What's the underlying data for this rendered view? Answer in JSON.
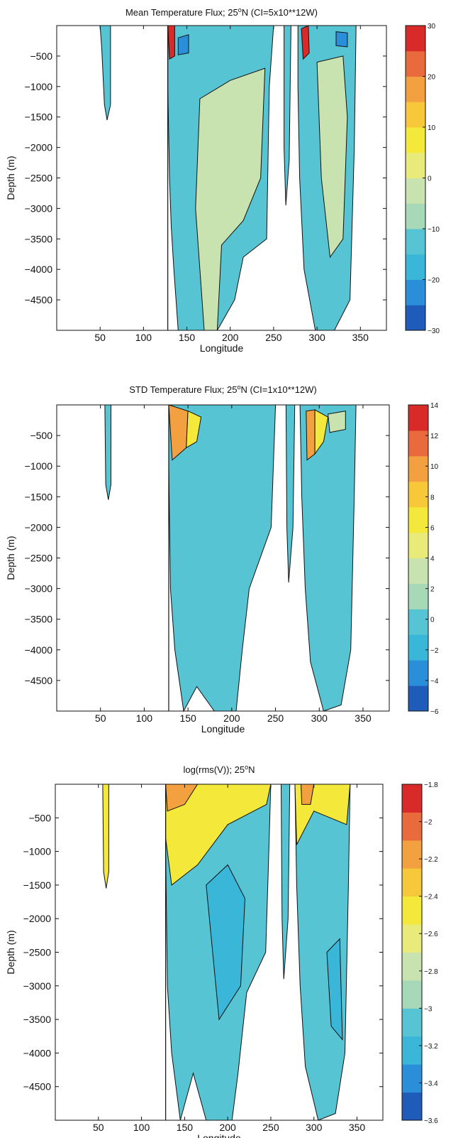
{
  "chart_data": [
    {
      "type": "heatmap",
      "title": "Mean Temperature Flux; 25°N (CI=5x10**12W)",
      "title_main": "Mean Temperature Flux; 25",
      "title_sup": "o",
      "title_rest": "N (CI=5x10**12W)",
      "xlabel": "Longitude",
      "ylabel": "Depth (m)",
      "xlim": [
        0,
        380
      ],
      "ylim": [
        -5000,
        0
      ],
      "xticks": [
        50,
        100,
        150,
        200,
        250,
        300,
        350
      ],
      "yticks": [
        -500,
        -1000,
        -1500,
        -2000,
        -2500,
        -3000,
        -3500,
        -4000,
        -4500
      ],
      "colorbar": {
        "range": [
          -30,
          30
        ],
        "ticks": [
          30,
          20,
          10,
          0,
          -10,
          -20,
          -30
        ],
        "colors": [
          "#1f5bb8",
          "#2a8fd8",
          "#39b6d8",
          "#57c4d4",
          "#a7d8b8",
          "#c9e3b0",
          "#e8ea7a",
          "#f4e93a",
          "#f6c83a",
          "#f2a040",
          "#e96a3c",
          "#d92a2a"
        ]
      }
    },
    {
      "type": "heatmap",
      "title": "STD Temperature Flux; 25°N (CI=1x10**12W)",
      "title_main": "STD Temperature Flux; 25",
      "title_sup": "o",
      "title_rest": "N (CI=1x10**12W)",
      "xlabel": "Longitude",
      "ylabel": "Depth (m)",
      "xlim": [
        0,
        380
      ],
      "ylim": [
        -5000,
        0
      ],
      "xticks": [
        50,
        100,
        150,
        200,
        250,
        300,
        350
      ],
      "yticks": [
        -500,
        -1000,
        -1500,
        -2000,
        -2500,
        -3000,
        -3500,
        -4000,
        -4500
      ],
      "colorbar": {
        "range": [
          -6,
          14
        ],
        "ticks": [
          14,
          12,
          10,
          8,
          6,
          4,
          2,
          0,
          -2,
          -4,
          -6
        ],
        "colors": [
          "#1f5bb8",
          "#2a8fd8",
          "#39b6d8",
          "#57c4d4",
          "#a7d8b8",
          "#c9e3b0",
          "#e8ea7a",
          "#f4e93a",
          "#f6c83a",
          "#f2a040",
          "#e96a3c",
          "#d92a2a"
        ]
      }
    },
    {
      "type": "heatmap",
      "title": "log(rms(V)); 25°N",
      "title_main": "log(rms(V)); 25",
      "title_sup": "o",
      "title_rest": "N",
      "xlabel": "Longitude",
      "ylabel": "Depth (m)",
      "xlim": [
        0,
        380
      ],
      "ylim": [
        -5000,
        0
      ],
      "xticks": [
        50,
        100,
        150,
        200,
        250,
        300,
        350
      ],
      "yticks": [
        -500,
        -1000,
        -1500,
        -2000,
        -2500,
        -3000,
        -3500,
        -4000,
        -4500
      ],
      "colorbar": {
        "range": [
          -3.6,
          -1.8
        ],
        "ticks": [
          -1.8,
          -2,
          -2.2,
          -2.4,
          -2.6,
          -2.8,
          -3,
          -3.2,
          -3.4,
          -3.6
        ],
        "colors": [
          "#1f5bb8",
          "#2a8fd8",
          "#39b6d8",
          "#57c4d4",
          "#a7d8b8",
          "#c9e3b0",
          "#e8ea7a",
          "#f4e93a",
          "#f6c83a",
          "#f2a040",
          "#e96a3c",
          "#d92a2a"
        ]
      }
    }
  ]
}
